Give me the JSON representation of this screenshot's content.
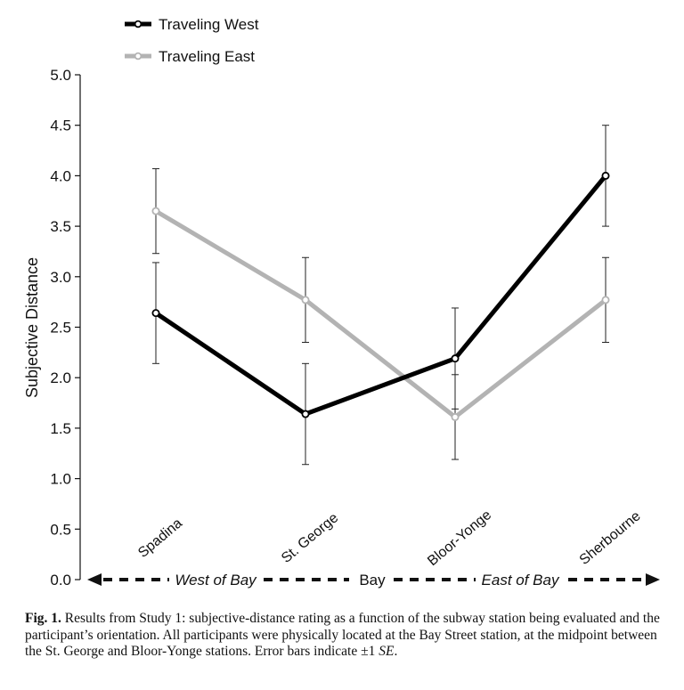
{
  "chart_data": {
    "type": "line",
    "title": "",
    "xlabel": "",
    "ylabel": "Subjective Distance",
    "ylim": [
      0,
      5
    ],
    "yticks": [
      "0.0",
      "0.5",
      "1.0",
      "1.5",
      "2.0",
      "2.5",
      "3.0",
      "3.5",
      "4.0",
      "4.5",
      "5.0"
    ],
    "categories": [
      "Spadina",
      "St. George",
      "Bloor-Yonge",
      "Sherbourne"
    ],
    "series": [
      {
        "name": "Traveling West",
        "color": "#000000",
        "values": [
          2.64,
          1.64,
          2.19,
          4.0
        ],
        "errors": [
          0.5,
          0.5,
          0.5,
          0.5
        ]
      },
      {
        "name": "Traveling East",
        "color": "#b3b3b3",
        "values": [
          3.65,
          2.77,
          1.61,
          2.77
        ],
        "errors": [
          0.42,
          0.42,
          0.42,
          0.42
        ]
      }
    ],
    "legend_position": "top-left",
    "grid": false,
    "x_axis_annotation": {
      "left": "West of Bay",
      "center": "Bay",
      "right": "East of Bay"
    }
  },
  "caption": {
    "fig_label": "Fig. 1.",
    "text": " Results from Study 1: subjective-distance rating as a function of the subway station being evaluated and the participant’s orientation. All participants were physically located at the Bay Street station, at the midpoint between the St. George and Bloor-Yonge stations. Error bars indicate ±1 ",
    "se": "SE",
    "end": "."
  }
}
